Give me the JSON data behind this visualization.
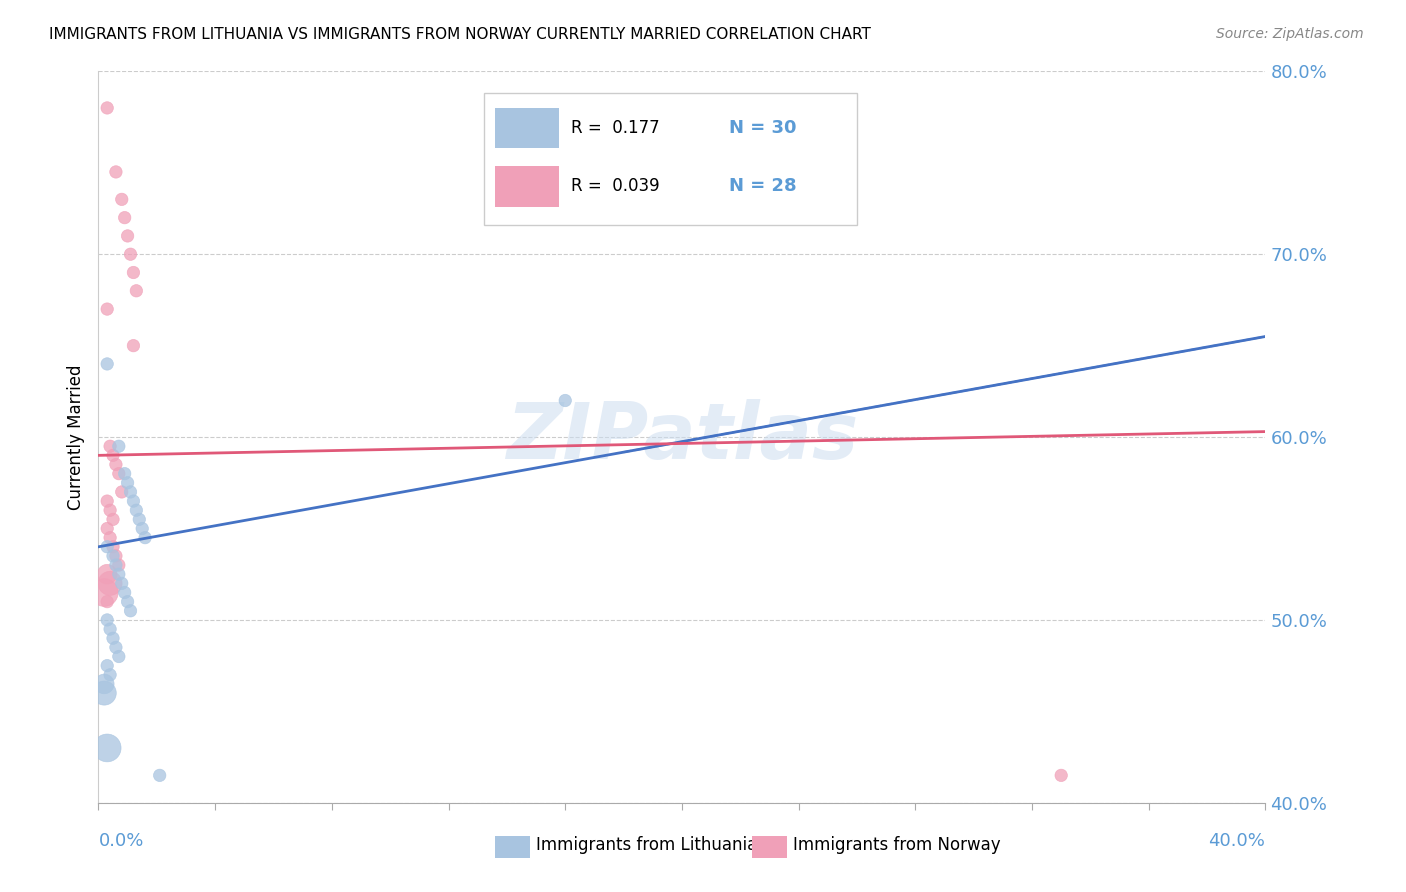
{
  "title": "IMMIGRANTS FROM LITHUANIA VS IMMIGRANTS FROM NORWAY CURRENTLY MARRIED CORRELATION CHART",
  "source": "Source: ZipAtlas.com",
  "ylabel": "Currently Married",
  "xlim": [
    0.0,
    0.4
  ],
  "ylim": [
    0.4,
    0.8
  ],
  "yticks": [
    0.4,
    0.5,
    0.6,
    0.7,
    0.8
  ],
  "ytick_labels": [
    "40.0%",
    "50.0%",
    "60.0%",
    "70.0%",
    "80.0%"
  ],
  "color_lithuania": "#a8c4e0",
  "color_norway": "#f0a0b8",
  "color_lithuania_line": "#4472c4",
  "color_norway_line": "#e05878",
  "color_axis_text": "#5b9bd5",
  "background": "#ffffff",
  "watermark": "ZIPatlas",
  "lit_x": [
    0.003,
    0.007,
    0.009,
    0.01,
    0.011,
    0.012,
    0.013,
    0.014,
    0.015,
    0.016,
    0.003,
    0.005,
    0.006,
    0.007,
    0.008,
    0.009,
    0.01,
    0.011,
    0.003,
    0.004,
    0.005,
    0.006,
    0.007,
    0.003,
    0.004,
    0.002,
    0.002,
    0.16,
    0.021,
    0.003
  ],
  "lit_y": [
    0.64,
    0.595,
    0.58,
    0.575,
    0.57,
    0.565,
    0.56,
    0.555,
    0.55,
    0.545,
    0.54,
    0.535,
    0.53,
    0.525,
    0.52,
    0.515,
    0.51,
    0.505,
    0.5,
    0.495,
    0.49,
    0.485,
    0.48,
    0.475,
    0.47,
    0.465,
    0.46,
    0.62,
    0.415,
    0.43
  ],
  "lit_sizes": [
    80,
    80,
    80,
    80,
    80,
    80,
    80,
    80,
    80,
    80,
    80,
    80,
    80,
    80,
    80,
    80,
    80,
    80,
    80,
    80,
    80,
    80,
    80,
    80,
    80,
    200,
    300,
    80,
    80,
    400
  ],
  "nor_x": [
    0.003,
    0.006,
    0.008,
    0.009,
    0.01,
    0.011,
    0.012,
    0.013,
    0.003,
    0.004,
    0.005,
    0.006,
    0.007,
    0.008,
    0.003,
    0.004,
    0.005,
    0.003,
    0.004,
    0.005,
    0.006,
    0.007,
    0.003,
    0.004,
    0.002,
    0.003,
    0.33,
    0.012
  ],
  "nor_y": [
    0.78,
    0.745,
    0.73,
    0.72,
    0.71,
    0.7,
    0.69,
    0.68,
    0.67,
    0.595,
    0.59,
    0.585,
    0.58,
    0.57,
    0.565,
    0.56,
    0.555,
    0.55,
    0.545,
    0.54,
    0.535,
    0.53,
    0.525,
    0.52,
    0.515,
    0.51,
    0.415,
    0.65
  ],
  "nor_sizes": [
    80,
    80,
    80,
    80,
    80,
    80,
    80,
    80,
    80,
    80,
    80,
    80,
    80,
    80,
    80,
    80,
    80,
    80,
    80,
    80,
    80,
    80,
    200,
    300,
    400,
    80,
    80,
    80
  ],
  "lit_line_x0": 0.0,
  "lit_line_x1": 0.4,
  "lit_line_y0": 0.54,
  "lit_line_y1": 0.655,
  "nor_line_x0": 0.0,
  "nor_line_x1": 0.4,
  "nor_line_y0": 0.59,
  "nor_line_y1": 0.603
}
